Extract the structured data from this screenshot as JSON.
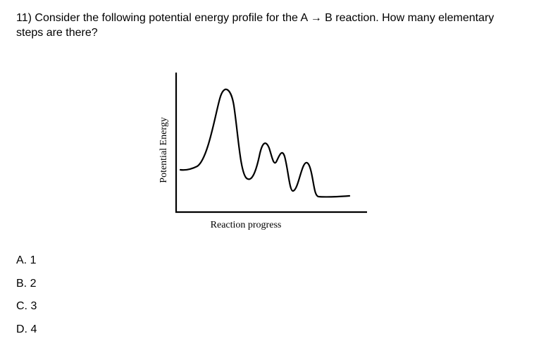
{
  "question": {
    "text": "11) Consider the following potential energy profile for the A → B reaction. How many elementary steps are there?"
  },
  "diagram": {
    "y_axis_label": "Potential Energy",
    "x_axis_label": "Reaction progress"
  },
  "options": [
    {
      "label": "A. 1"
    },
    {
      "label": "B. 2"
    },
    {
      "label": "C. 3"
    },
    {
      "label": "D. 4"
    }
  ]
}
